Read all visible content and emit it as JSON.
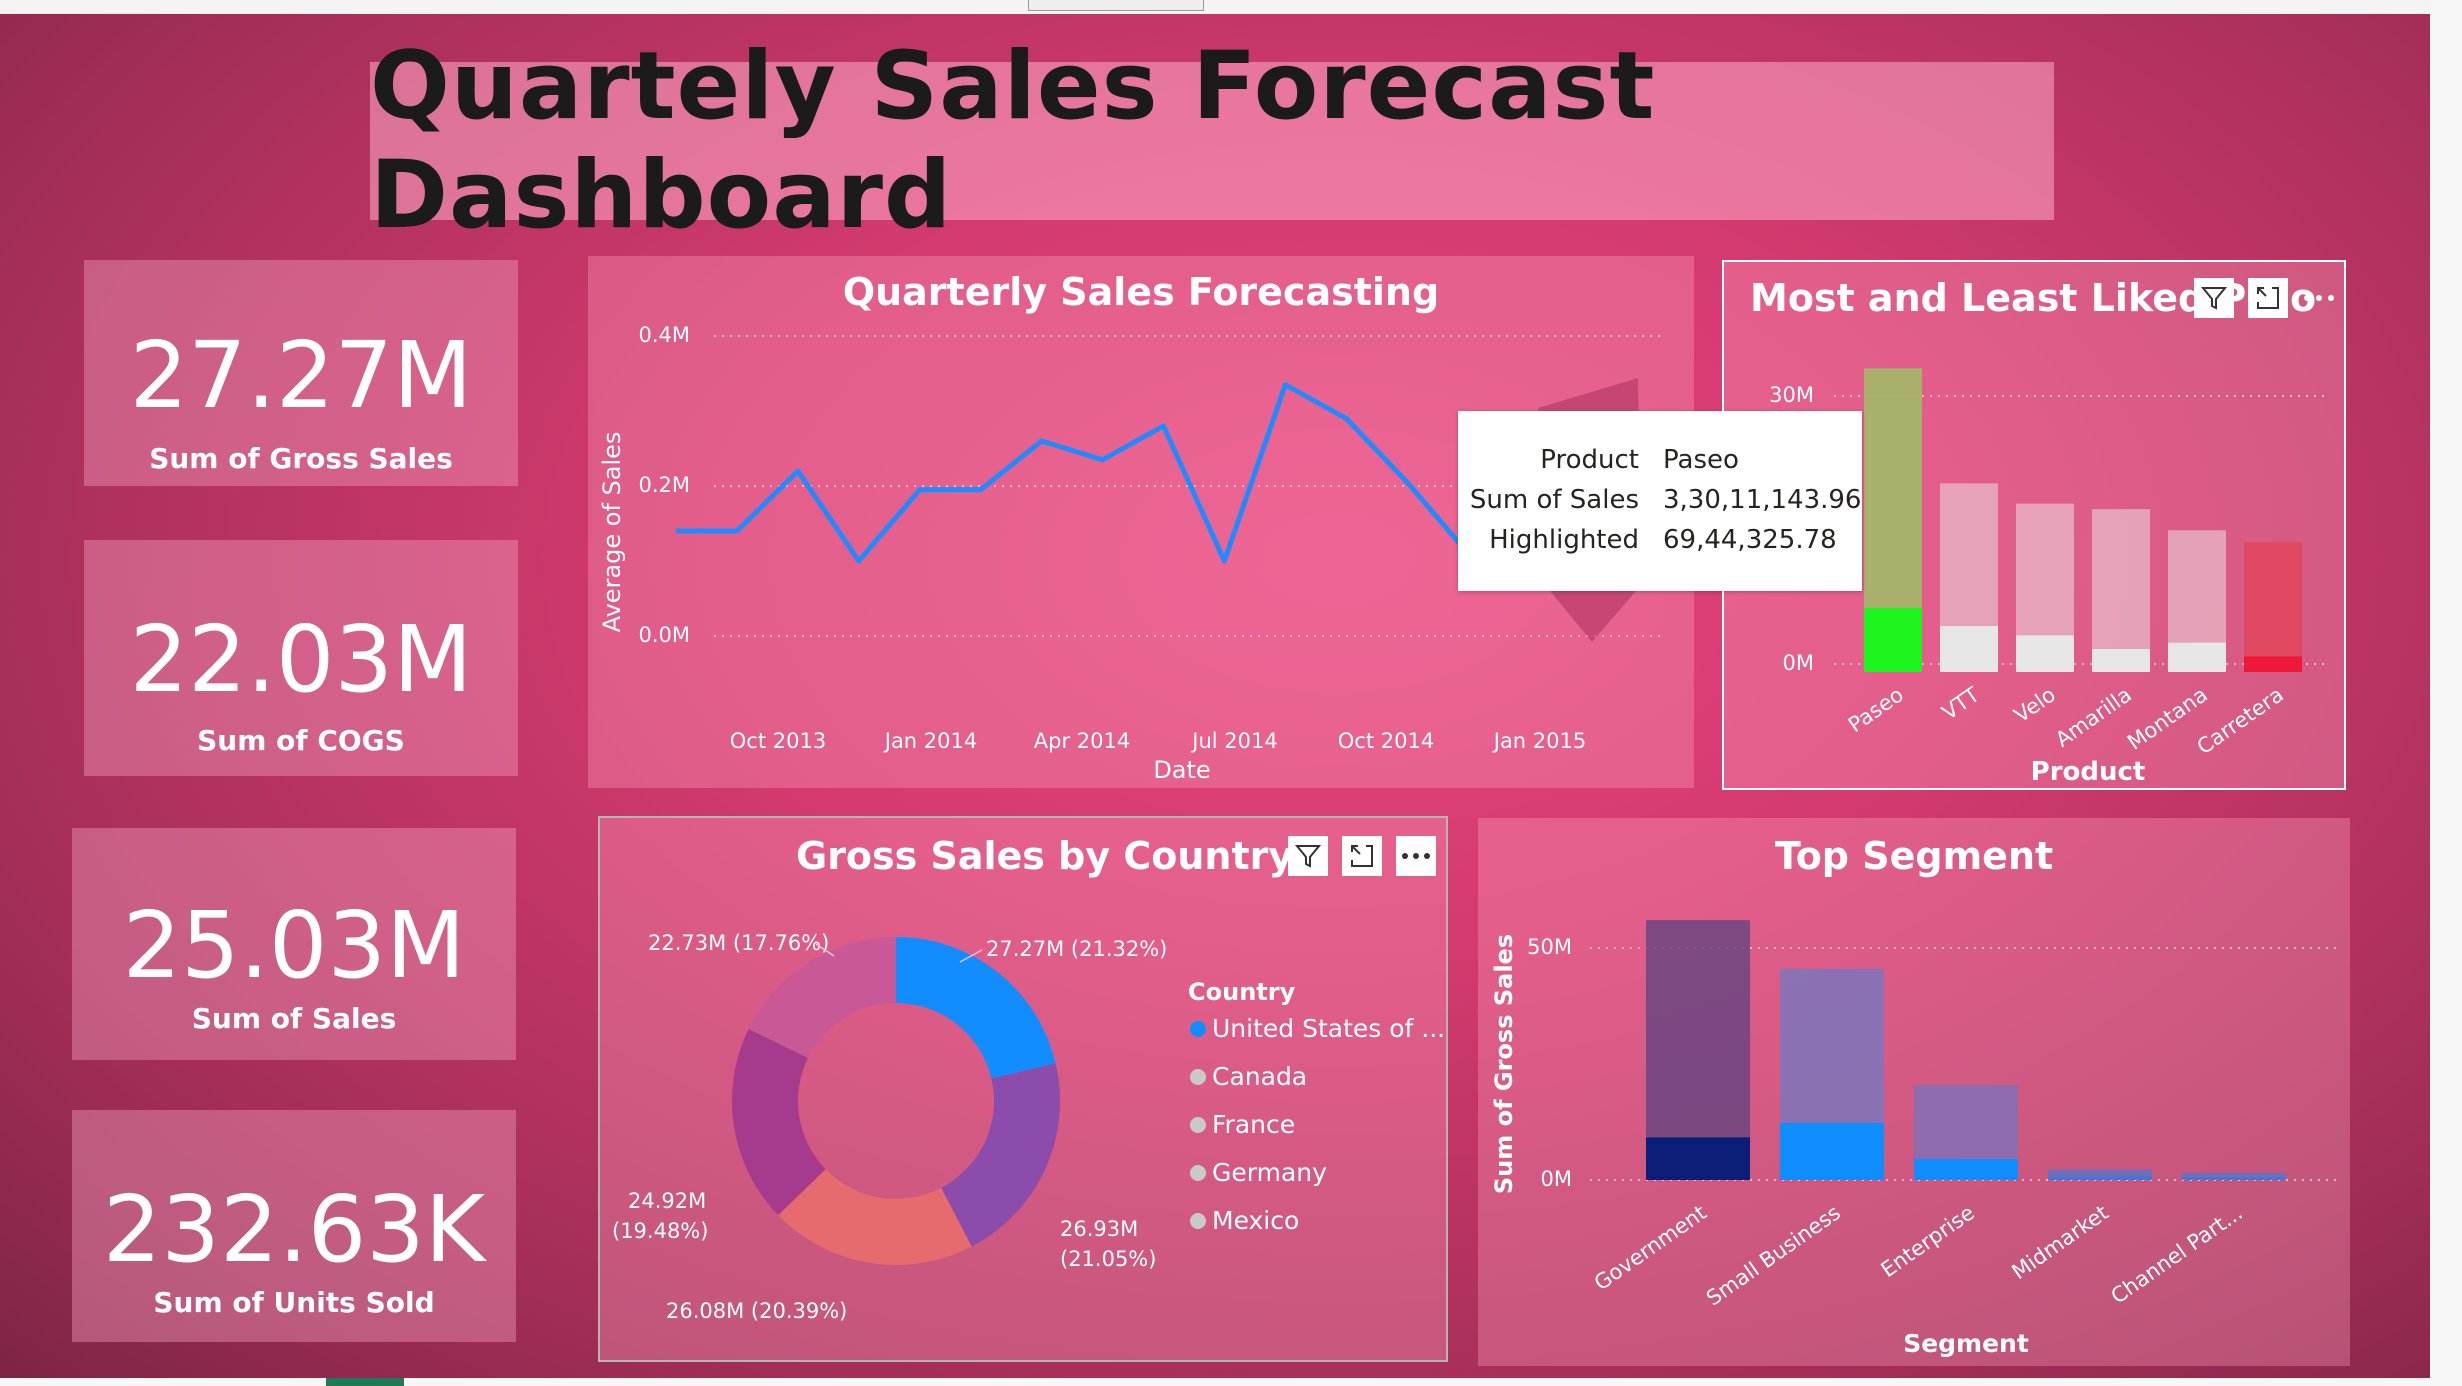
{
  "dashboard_title": "Quartely Sales Forecast Dashboard",
  "kpis": [
    {
      "value": "27.27M",
      "label": "Sum of Gross Sales"
    },
    {
      "value": "22.03M",
      "label": "Sum of COGS"
    },
    {
      "value": "25.03M",
      "label": "Sum of Sales"
    },
    {
      "value": "232.63K",
      "label": "Sum of Units Sold"
    }
  ],
  "line_chart": {
    "title": "Quarterly Sales Forecasting",
    "xlabel": "Date",
    "ylabel": "Average of Sales",
    "yticks": [
      "0.4M",
      "0.2M",
      "0.0M"
    ],
    "xticks": [
      "Oct 2013",
      "Jan 2014",
      "Apr 2014",
      "Jul 2014",
      "Oct 2014",
      "Jan 2015"
    ]
  },
  "product_chart": {
    "title": "Most and Least Liked Pr",
    "title_tail": "o",
    "xlabel": "Product",
    "yticks": [
      "30M",
      "0M"
    ],
    "categories": [
      "Paseo",
      "VTT",
      "Velo",
      "Amarilla",
      "Montana",
      "Carretera"
    ]
  },
  "tooltip": {
    "rows": [
      {
        "key": "Product",
        "value": "Paseo"
      },
      {
        "key": "Sum of Sales",
        "value": "3,30,11,143.96"
      },
      {
        "key": "Highlighted",
        "value": "69,44,325.78"
      }
    ]
  },
  "donut_chart": {
    "title": "Gross Sales by Country",
    "legend_title": "Country",
    "legend": [
      "United States of ...",
      "Canada",
      "France",
      "Germany",
      "Mexico"
    ],
    "labels": {
      "usa": "27.27M (21.32%)",
      "germany_a": "26.93M",
      "germany_b": "(21.05%)",
      "mexico": "26.08M (20.39%)",
      "france_a": "24.92M",
      "france_b": "(19.48%)",
      "canada": "22.73M (17.76%)"
    }
  },
  "segment_chart": {
    "title": "Top Segment",
    "xlabel": "Segment",
    "ylabel": "Sum of Gross Sales",
    "yticks": [
      "50M",
      "0M"
    ],
    "categories": [
      "Government",
      "Small Business",
      "Enterprise",
      "Midmarket",
      "Channel Part..."
    ]
  },
  "colors": {
    "background": "#d33a6f",
    "line": "#1f8bff",
    "highlight_green": "#1ef51e",
    "highlight_red": "#f01838",
    "usa": "#118dff",
    "canada": "#c95896",
    "france": "#a63a8c",
    "germany": "#8c4cab",
    "mexico": "#e56b6f"
  },
  "chart_data": [
    {
      "type": "line",
      "title": "Quarterly Sales Forecasting",
      "xlabel": "Date",
      "ylabel": "Average of Sales",
      "ylim": [
        0,
        0.4
      ],
      "unit": "M",
      "x": [
        "Sep 2013",
        "Oct 2013",
        "Nov 2013",
        "Dec 2013",
        "Jan 2014",
        "Feb 2014",
        "Mar 2014",
        "Apr 2014",
        "May 2014",
        "Jun 2014",
        "Jul 2014",
        "Aug 2014",
        "Sep 2014",
        "Oct 2014",
        "Nov 2014",
        "Dec 2014"
      ],
      "values": [
        0.14,
        0.14,
        0.22,
        0.1,
        0.195,
        0.195,
        0.26,
        0.235,
        0.28,
        0.1,
        0.335,
        0.29,
        0.205,
        0.11,
        0.225,
        0.19
      ]
    },
    {
      "type": "bar",
      "title": "Most and Least Liked Pr",
      "xlabel": "Product",
      "ylim": [
        0,
        40
      ],
      "unit": "M",
      "categories": [
        "Paseo",
        "VTT",
        "Velo",
        "Amarilla",
        "Montana",
        "Carretera"
      ],
      "series": [
        {
          "name": "Sum of Sales",
          "values": [
            33.01,
            20.5,
            18.3,
            17.7,
            15.4,
            14.1
          ]
        },
        {
          "name": "Highlighted",
          "values": [
            6.94,
            5.0,
            4.0,
            2.5,
            3.2,
            1.7
          ]
        }
      ]
    },
    {
      "type": "pie",
      "title": "Gross Sales by Country",
      "categories": [
        "United States of ...",
        "Germany",
        "Mexico",
        "France",
        "Canada"
      ],
      "values": [
        27.27,
        26.93,
        26.08,
        24.92,
        22.73
      ],
      "percent": [
        21.32,
        21.05,
        20.39,
        19.48,
        17.76
      ]
    },
    {
      "type": "bar",
      "title": "Top Segment",
      "xlabel": "Segment",
      "ylabel": "Sum of Gross Sales",
      "ylim": [
        0,
        60
      ],
      "unit": "M",
      "categories": [
        "Government",
        "Small Business",
        "Enterprise",
        "Midmarket",
        "Channel Part..."
      ],
      "series": [
        {
          "values": [
            56,
            45.5,
            20.5,
            2.3,
            1.6
          ]
        },
        {
          "values": [
            9.2,
            12.3,
            4.5,
            0.8,
            0.6
          ]
        }
      ]
    }
  ]
}
